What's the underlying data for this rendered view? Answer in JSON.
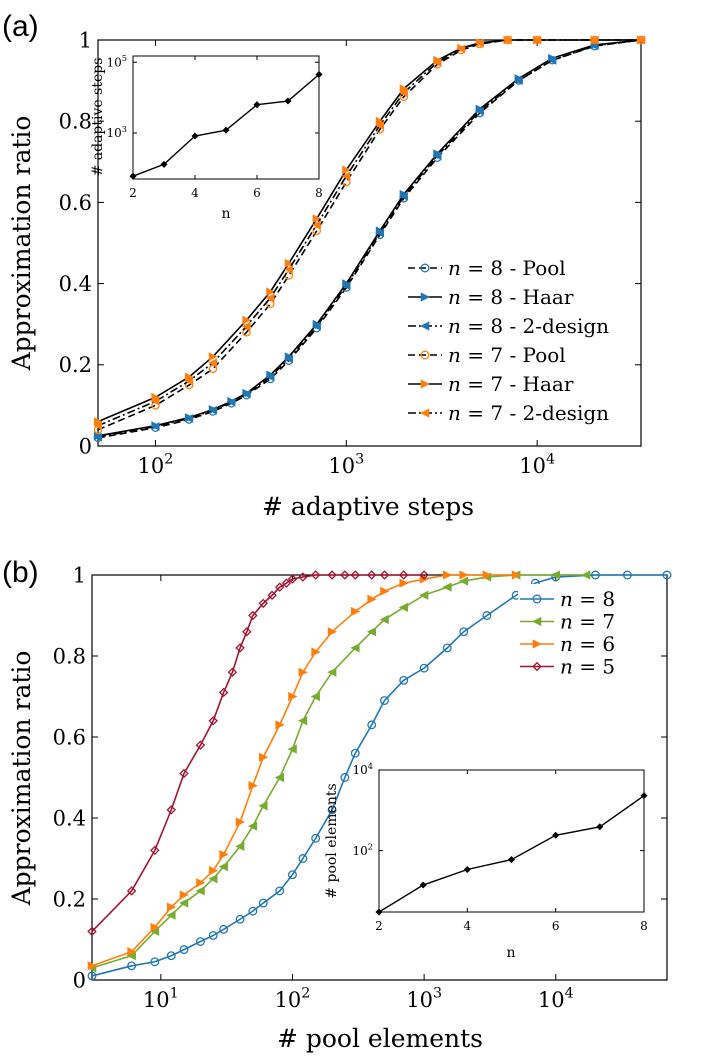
{
  "panel_a": {
    "label": "(a)",
    "ylabel": "Approximation ratio",
    "xlabel": "# adaptive steps"
  },
  "panel_b": {
    "label": "(b)",
    "ylabel": "Approximation ratio",
    "xlabel": "# pool elements"
  },
  "chart_data": [
    {
      "id": "a-main",
      "type": "line",
      "xscale": "log",
      "xlim": [
        50,
        35000
      ],
      "ylim": [
        0,
        1
      ],
      "xticks": [
        {
          "v": 100,
          "label": "10",
          "exp": "2"
        },
        {
          "v": 1000,
          "label": "10",
          "exp": "3"
        },
        {
          "v": 10000,
          "label": "10",
          "exp": "4"
        }
      ],
      "yticks": [
        {
          "v": 0,
          "label": "0"
        },
        {
          "v": 0.2,
          "label": "0.2"
        },
        {
          "v": 0.4,
          "label": "0.4"
        },
        {
          "v": 0.6,
          "label": "0.6"
        },
        {
          "v": 0.8,
          "label": "0.8"
        },
        {
          "v": 1,
          "label": "1"
        }
      ],
      "legend_position": "right",
      "series": [
        {
          "name": "n = 8 - Pool",
          "n": "8",
          "suffix": " - Pool",
          "color": "#1f77b4",
          "marker": "circle",
          "line": "dash",
          "x": [
            50,
            100,
            150,
            200,
            250,
            300,
            400,
            500,
            700,
            1000,
            1500,
            2000,
            3000,
            5000,
            8000,
            12000,
            20000,
            35000
          ],
          "y": [
            0.02,
            0.045,
            0.065,
            0.085,
            0.105,
            0.125,
            0.165,
            0.21,
            0.29,
            0.39,
            0.52,
            0.61,
            0.71,
            0.82,
            0.9,
            0.95,
            0.985,
            1.0
          ]
        },
        {
          "name": "n = 8 - Haar",
          "n": "8",
          "suffix": " - Haar",
          "color": "#1f77b4",
          "marker": "tri-right",
          "line": "solid",
          "x": [
            50,
            100,
            150,
            200,
            250,
            300,
            400,
            500,
            700,
            1000,
            1500,
            2000,
            3000,
            5000,
            8000,
            12000,
            20000,
            35000
          ],
          "y": [
            0.025,
            0.05,
            0.07,
            0.09,
            0.11,
            0.13,
            0.175,
            0.22,
            0.3,
            0.4,
            0.53,
            0.62,
            0.72,
            0.83,
            0.905,
            0.955,
            0.988,
            1.0
          ]
        },
        {
          "name": "n = 8 - 2-design",
          "n": "8",
          "suffix": " - 2-design",
          "color": "#1f77b4",
          "marker": "tri-left",
          "line": "dashdot",
          "x": [
            50,
            100,
            150,
            200,
            250,
            300,
            400,
            500,
            700,
            1000,
            1500,
            2000,
            3000,
            5000,
            8000,
            12000,
            20000,
            35000
          ],
          "y": [
            0.022,
            0.048,
            0.068,
            0.088,
            0.108,
            0.128,
            0.17,
            0.215,
            0.295,
            0.395,
            0.525,
            0.615,
            0.715,
            0.825,
            0.9,
            0.95,
            0.986,
            1.0
          ]
        },
        {
          "name": "n = 7 - Pool",
          "n": "7",
          "suffix": " - Pool",
          "color": "#ff7f0e",
          "marker": "circle",
          "line": "dash",
          "x": [
            50,
            100,
            150,
            200,
            300,
            400,
            500,
            700,
            1000,
            1500,
            2000,
            3000,
            4000,
            5000,
            7000,
            10000,
            20000,
            35000
          ],
          "y": [
            0.04,
            0.1,
            0.15,
            0.19,
            0.28,
            0.35,
            0.42,
            0.53,
            0.65,
            0.78,
            0.86,
            0.94,
            0.975,
            0.99,
            1.0,
            1.0,
            1.0,
            1.0
          ]
        },
        {
          "name": "n = 7 - Haar",
          "n": "7",
          "suffix": " - Haar",
          "color": "#ff7f0e",
          "marker": "tri-right",
          "line": "solid",
          "x": [
            50,
            100,
            150,
            200,
            300,
            400,
            500,
            700,
            1000,
            1500,
            2000,
            3000,
            4000,
            5000,
            7000,
            10000,
            20000,
            35000
          ],
          "y": [
            0.06,
            0.12,
            0.17,
            0.22,
            0.31,
            0.38,
            0.45,
            0.56,
            0.68,
            0.8,
            0.88,
            0.95,
            0.98,
            0.993,
            1.0,
            1.0,
            1.0,
            1.0
          ]
        },
        {
          "name": "n = 7 - 2-design",
          "n": "7",
          "suffix": " - 2-design",
          "color": "#ff7f0e",
          "marker": "tri-left",
          "line": "dashdot",
          "x": [
            50,
            100,
            150,
            200,
            300,
            400,
            500,
            700,
            1000,
            1500,
            2000,
            3000,
            4000,
            5000,
            7000,
            10000,
            20000,
            35000
          ],
          "y": [
            0.05,
            0.11,
            0.16,
            0.205,
            0.295,
            0.365,
            0.435,
            0.545,
            0.665,
            0.79,
            0.87,
            0.945,
            0.978,
            0.992,
            1.0,
            1.0,
            1.0,
            1.0
          ]
        }
      ]
    },
    {
      "id": "a-inset",
      "type": "line",
      "xlabel": "n",
      "ylabel": "# adaptive steps",
      "xscale": "linear",
      "yscale": "log",
      "xlim": [
        2,
        8
      ],
      "ylim": [
        50,
        150000
      ],
      "xticks": [
        {
          "v": 2,
          "label": "2"
        },
        {
          "v": 4,
          "label": "4"
        },
        {
          "v": 6,
          "label": "6"
        },
        {
          "v": 8,
          "label": "8"
        }
      ],
      "yticks": [
        {
          "v": 1000,
          "label": "10",
          "exp": "3"
        },
        {
          "v": 100000,
          "label": "10",
          "exp": "5"
        }
      ],
      "series": [
        {
          "name": "inset",
          "color": "#000000",
          "marker": "diamond",
          "x": [
            2,
            3,
            4,
            5,
            6,
            7,
            8
          ],
          "y": [
            60,
            130,
            820,
            1200,
            6300,
            8000,
            45000
          ]
        }
      ]
    },
    {
      "id": "b-main",
      "type": "line",
      "xscale": "log",
      "xlim": [
        3,
        70000
      ],
      "ylim": [
        0,
        1
      ],
      "xticks": [
        {
          "v": 10,
          "label": "10",
          "exp": "1"
        },
        {
          "v": 100,
          "label": "10",
          "exp": "2"
        },
        {
          "v": 1000,
          "label": "10",
          "exp": "3"
        },
        {
          "v": 10000,
          "label": "10",
          "exp": "4"
        }
      ],
      "yticks": [
        {
          "v": 0,
          "label": "0"
        },
        {
          "v": 0.2,
          "label": "0.2"
        },
        {
          "v": 0.4,
          "label": "0.4"
        },
        {
          "v": 0.6,
          "label": "0.6"
        },
        {
          "v": 0.8,
          "label": "0.8"
        },
        {
          "v": 1,
          "label": "1"
        }
      ],
      "legend_position": "top-right",
      "series": [
        {
          "name": "n = 8",
          "n": "8",
          "suffix": "",
          "color": "#1f77b4",
          "marker": "circle",
          "line": "solid",
          "x": [
            3,
            6,
            9,
            12,
            15,
            20,
            25,
            30,
            40,
            50,
            60,
            80,
            100,
            120,
            150,
            200,
            250,
            300,
            400,
            500,
            700,
            1000,
            1500,
            2000,
            3000,
            5000,
            7000,
            10000,
            20000,
            35000,
            70000
          ],
          "y": [
            0.01,
            0.035,
            0.045,
            0.06,
            0.075,
            0.095,
            0.11,
            0.125,
            0.15,
            0.17,
            0.19,
            0.22,
            0.26,
            0.3,
            0.35,
            0.42,
            0.5,
            0.56,
            0.63,
            0.69,
            0.74,
            0.77,
            0.82,
            0.86,
            0.9,
            0.95,
            0.98,
            0.995,
            1.0,
            1.0,
            1.0
          ]
        },
        {
          "name": "n = 7",
          "n": "7",
          "suffix": "",
          "color": "#77ac30",
          "marker": "tri-left",
          "line": "solid",
          "x": [
            3,
            6,
            9,
            12,
            15,
            20,
            25,
            30,
            40,
            50,
            60,
            80,
            100,
            120,
            150,
            200,
            300,
            400,
            500,
            700,
            1000,
            1500,
            2000,
            3000,
            5000,
            10000,
            17000
          ],
          "y": [
            0.03,
            0.06,
            0.12,
            0.16,
            0.19,
            0.22,
            0.25,
            0.28,
            0.33,
            0.38,
            0.43,
            0.5,
            0.57,
            0.64,
            0.7,
            0.76,
            0.82,
            0.86,
            0.89,
            0.92,
            0.95,
            0.97,
            0.985,
            0.995,
            1.0,
            1.0,
            1.0
          ]
        },
        {
          "name": "n = 6",
          "n": "6",
          "suffix": "",
          "color": "#ff7f0e",
          "marker": "tri-right",
          "line": "solid",
          "x": [
            3,
            6,
            9,
            12,
            15,
            20,
            25,
            30,
            40,
            50,
            60,
            80,
            100,
            120,
            150,
            200,
            300,
            400,
            500,
            700,
            1000,
            1500,
            2000,
            3000,
            5000
          ],
          "y": [
            0.035,
            0.07,
            0.13,
            0.18,
            0.21,
            0.24,
            0.27,
            0.31,
            0.39,
            0.48,
            0.55,
            0.63,
            0.7,
            0.76,
            0.81,
            0.86,
            0.91,
            0.94,
            0.96,
            0.98,
            0.99,
            1.0,
            1.0,
            1.0,
            1.0
          ]
        },
        {
          "name": "n = 5",
          "n": "5",
          "suffix": "",
          "color": "#a2142f",
          "marker": "diamond",
          "line": "solid",
          "x": [
            3,
            6,
            9,
            12,
            15,
            20,
            25,
            30,
            35,
            40,
            45,
            50,
            60,
            70,
            80,
            90,
            100,
            120,
            150,
            200,
            250,
            300,
            400,
            500,
            700,
            1000
          ],
          "y": [
            0.12,
            0.22,
            0.32,
            0.42,
            0.51,
            0.58,
            0.64,
            0.71,
            0.76,
            0.82,
            0.86,
            0.9,
            0.93,
            0.95,
            0.97,
            0.98,
            0.99,
            0.995,
            1.0,
            1.0,
            1.0,
            1.0,
            1.0,
            1.0,
            1.0,
            1.0
          ]
        }
      ]
    },
    {
      "id": "b-inset",
      "type": "line",
      "xlabel": "n",
      "ylabel": "# pool elements",
      "xscale": "linear",
      "yscale": "log",
      "xlim": [
        2,
        8
      ],
      "ylim": [
        3,
        10000
      ],
      "xticks": [
        {
          "v": 2,
          "label": "2"
        },
        {
          "v": 4,
          "label": "4"
        },
        {
          "v": 6,
          "label": "6"
        },
        {
          "v": 8,
          "label": "8"
        }
      ],
      "yticks": [
        {
          "v": 100,
          "label": "10",
          "exp": "2"
        },
        {
          "v": 10000,
          "label": "10",
          "exp": "4"
        }
      ],
      "series": [
        {
          "name": "inset",
          "color": "#000000",
          "marker": "diamond",
          "x": [
            2,
            3,
            4,
            5,
            6,
            7,
            8
          ],
          "y": [
            3,
            14,
            34,
            60,
            240,
            390,
            2300
          ]
        }
      ]
    }
  ]
}
